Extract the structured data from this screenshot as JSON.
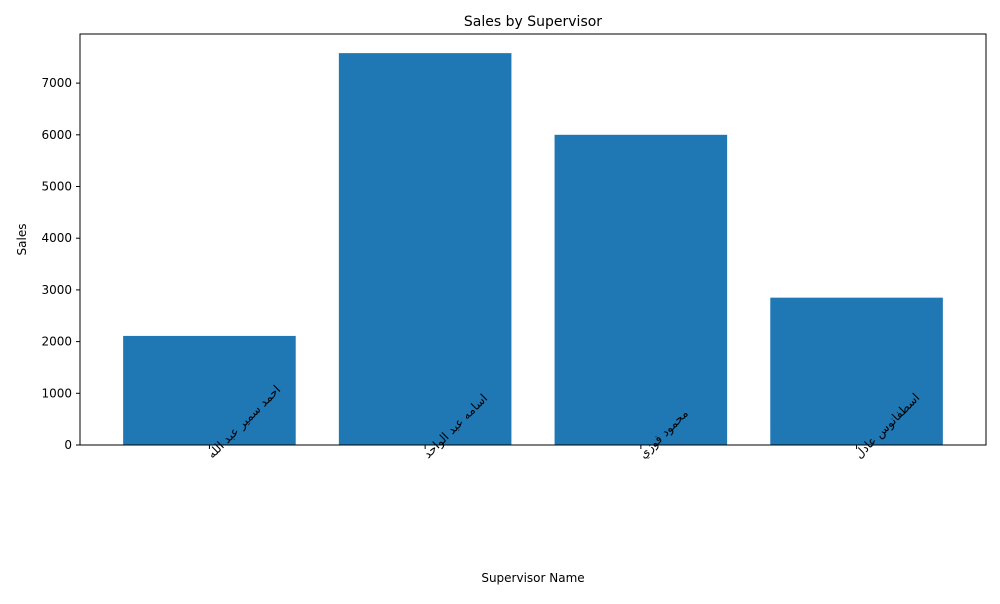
{
  "chart_data": {
    "type": "bar",
    "title": "Sales by Supervisor",
    "xlabel": "Supervisor Name",
    "ylabel": "Sales",
    "categories": [
      "احمد سمير عبد الله",
      "اسامه عبد الواحد",
      "محمود فوزي",
      "اسطفانوس عادل"
    ],
    "values": [
      2110,
      7580,
      6000,
      2850
    ],
    "ylim": [
      0,
      7950
    ],
    "yticks": [
      0,
      1000,
      2000,
      3000,
      4000,
      5000,
      6000,
      7000
    ],
    "grid": false,
    "legend": "none",
    "bar_color": "#1f77b4"
  }
}
